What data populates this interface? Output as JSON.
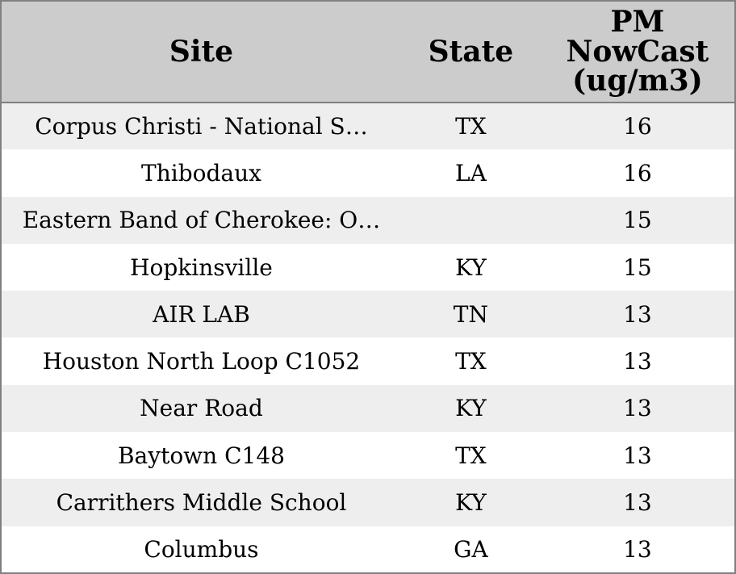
{
  "chart_data": {
    "type": "table",
    "columns": [
      {
        "key": "site",
        "label": "Site"
      },
      {
        "key": "state",
        "label": "State"
      },
      {
        "key": "pm",
        "label": "PM\nNowCast\n(ug/m3)"
      }
    ],
    "rows": [
      {
        "site": "Corpus Christi - National S…",
        "state": "TX",
        "pm": "16"
      },
      {
        "site": "Thibodaux",
        "state": "LA",
        "pm": "16"
      },
      {
        "site": "Eastern Band of Cherokee: O…",
        "state": "",
        "pm": "15"
      },
      {
        "site": "Hopkinsville",
        "state": "KY",
        "pm": "15"
      },
      {
        "site": "AIR LAB",
        "state": "TN",
        "pm": "13"
      },
      {
        "site": "Houston North Loop C1052",
        "state": "TX",
        "pm": "13"
      },
      {
        "site": "Near Road",
        "state": "KY",
        "pm": "13"
      },
      {
        "site": "Baytown C148",
        "state": "TX",
        "pm": "13"
      },
      {
        "site": "Carrithers Middle School",
        "state": "KY",
        "pm": "13"
      },
      {
        "site": "Columbus",
        "state": "GA",
        "pm": "13"
      }
    ],
    "layout": {
      "striped": true,
      "all_cells_centered": true
    }
  },
  "style": {
    "header_bg": "#cccccc",
    "row_alt_bg": "#eeeeee",
    "row_bg": "#ffffff",
    "border_color": "#808080",
    "text_color": "#000000"
  }
}
